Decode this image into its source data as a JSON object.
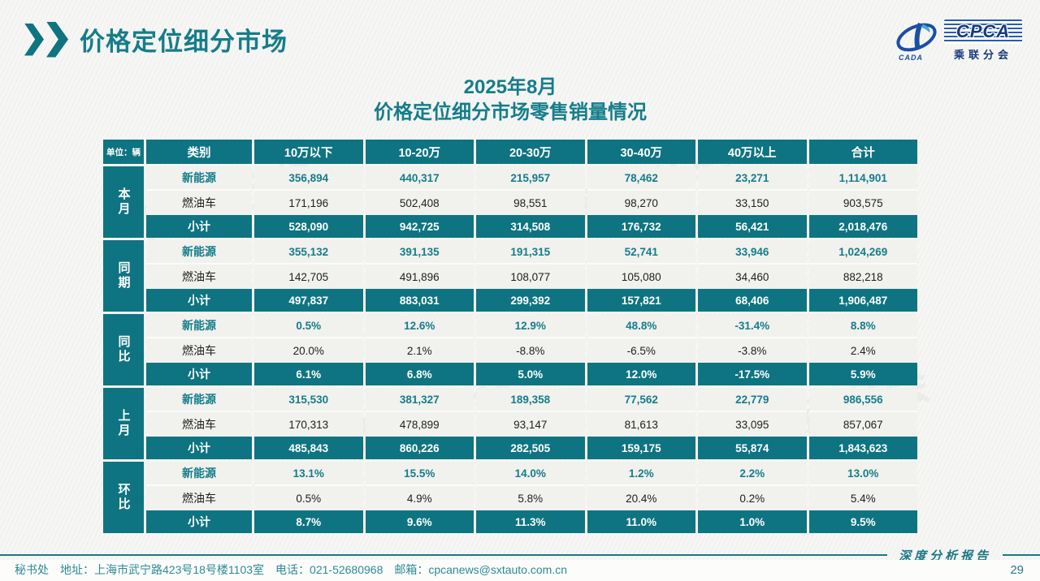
{
  "page": {
    "title": "价格定位细分市场",
    "page_number": "29"
  },
  "logo": {
    "org_en": "CPCA",
    "org_cn": "乘联分会",
    "emblem_text": "CADA"
  },
  "subtitle": {
    "line1": "2025年8月",
    "line2": "价格定位细分市场零售销量情况"
  },
  "colors": {
    "teal": "#0f7481",
    "title_teal": "#157d8a",
    "logo_blue": "#16397f",
    "row_light": "#f1f1ee"
  },
  "chart_data": {
    "type": "table",
    "title": "2025年8月价格定位细分市场零售销量情况",
    "unit": "单位：辆",
    "columns": [
      "类别",
      "10万以下",
      "10-20万",
      "20-30万",
      "30-40万",
      "40万以上",
      "合计"
    ],
    "groups": [
      {
        "label": "本月",
        "rows": [
          {
            "type": "nev",
            "label": "新能源",
            "values": [
              "356,894",
              "440,317",
              "215,957",
              "78,462",
              "23,271",
              "1,114,901"
            ]
          },
          {
            "type": "fuel",
            "label": "燃油车",
            "values": [
              "171,196",
              "502,408",
              "98,551",
              "98,270",
              "33,150",
              "903,575"
            ]
          },
          {
            "type": "subtotal",
            "label": "小计",
            "values": [
              "528,090",
              "942,725",
              "314,508",
              "176,732",
              "56,421",
              "2,018,476"
            ]
          }
        ]
      },
      {
        "label": "同期",
        "rows": [
          {
            "type": "nev",
            "label": "新能源",
            "values": [
              "355,132",
              "391,135",
              "191,315",
              "52,741",
              "33,946",
              "1,024,269"
            ]
          },
          {
            "type": "fuel",
            "label": "燃油车",
            "values": [
              "142,705",
              "491,896",
              "108,077",
              "105,080",
              "34,460",
              "882,218"
            ]
          },
          {
            "type": "subtotal",
            "label": "小计",
            "values": [
              "497,837",
              "883,031",
              "299,392",
              "157,821",
              "68,406",
              "1,906,487"
            ]
          }
        ]
      },
      {
        "label": "同比",
        "rows": [
          {
            "type": "nev",
            "label": "新能源",
            "values": [
              "0.5%",
              "12.6%",
              "12.9%",
              "48.8%",
              "-31.4%",
              "8.8%"
            ]
          },
          {
            "type": "fuel",
            "label": "燃油车",
            "values": [
              "20.0%",
              "2.1%",
              "-8.8%",
              "-6.5%",
              "-3.8%",
              "2.4%"
            ]
          },
          {
            "type": "subtotal",
            "label": "小计",
            "values": [
              "6.1%",
              "6.8%",
              "5.0%",
              "12.0%",
              "-17.5%",
              "5.9%"
            ]
          }
        ]
      },
      {
        "label": "上月",
        "rows": [
          {
            "type": "nev",
            "label": "新能源",
            "values": [
              "315,530",
              "381,327",
              "189,358",
              "77,562",
              "22,779",
              "986,556"
            ]
          },
          {
            "type": "fuel",
            "label": "燃油车",
            "values": [
              "170,313",
              "478,899",
              "93,147",
              "81,613",
              "33,095",
              "857,067"
            ]
          },
          {
            "type": "subtotal",
            "label": "小计",
            "values": [
              "485,843",
              "860,226",
              "282,505",
              "159,175",
              "55,874",
              "1,843,623"
            ]
          }
        ]
      },
      {
        "label": "环比",
        "rows": [
          {
            "type": "nev",
            "label": "新能源",
            "values": [
              "13.1%",
              "15.5%",
              "14.0%",
              "1.2%",
              "2.2%",
              "13.0%"
            ]
          },
          {
            "type": "fuel",
            "label": "燃油车",
            "values": [
              "0.5%",
              "4.9%",
              "5.8%",
              "20.4%",
              "0.2%",
              "5.4%"
            ]
          },
          {
            "type": "subtotal",
            "label": "小计",
            "values": [
              "8.7%",
              "9.6%",
              "11.3%",
              "11.0%",
              "1.0%",
              "9.5%"
            ]
          }
        ]
      }
    ]
  },
  "footer": {
    "secretariat": "秘书处",
    "address": "地址：上海市武宁路423号18号楼1103室",
    "phone": "电话：021-52680968",
    "email": "邮箱：cpcanews@sxtauto.com.cn",
    "report_label": "深度分析报告"
  }
}
